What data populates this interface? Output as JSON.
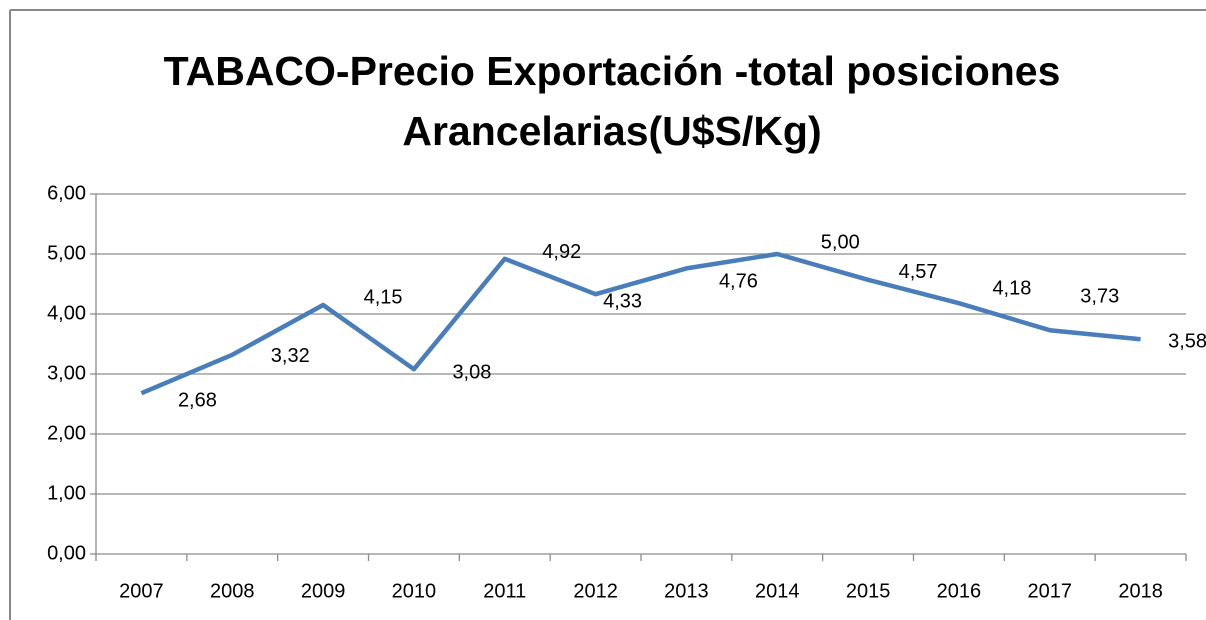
{
  "chart_data": {
    "type": "line",
    "title": [
      "TABACO-Precio Exportación -total posiciones",
      "Arancelarias(U$S/Kg)"
    ],
    "categories": [
      "2007",
      "2008",
      "2009",
      "2010",
      "2011",
      "2012",
      "2013",
      "2014",
      "2015",
      "2016",
      "2017",
      "2018"
    ],
    "series": [
      {
        "name": "Precio",
        "color": "#4a7ebb",
        "values": [
          2.68,
          3.32,
          4.15,
          3.08,
          4.92,
          4.33,
          4.76,
          5.0,
          4.57,
          4.18,
          3.73,
          3.58
        ],
        "value_labels": [
          "2,68",
          "3,32",
          "4,15",
          "3,08",
          "4,92",
          "4,33",
          "4,76",
          "5,00",
          "4,57",
          "4,18",
          "3,73",
          "3,58"
        ]
      }
    ],
    "ylim": [
      0,
      6
    ],
    "yticks": [
      {
        "value": 0,
        "label": "0,00"
      },
      {
        "value": 1,
        "label": "1,00"
      },
      {
        "value": 2,
        "label": "2,00"
      },
      {
        "value": 3,
        "label": "3,00"
      },
      {
        "value": 4,
        "label": "4,00"
      },
      {
        "value": 5,
        "label": "5,00"
      },
      {
        "value": 6,
        "label": "6,00"
      }
    ],
    "grid": true
  }
}
